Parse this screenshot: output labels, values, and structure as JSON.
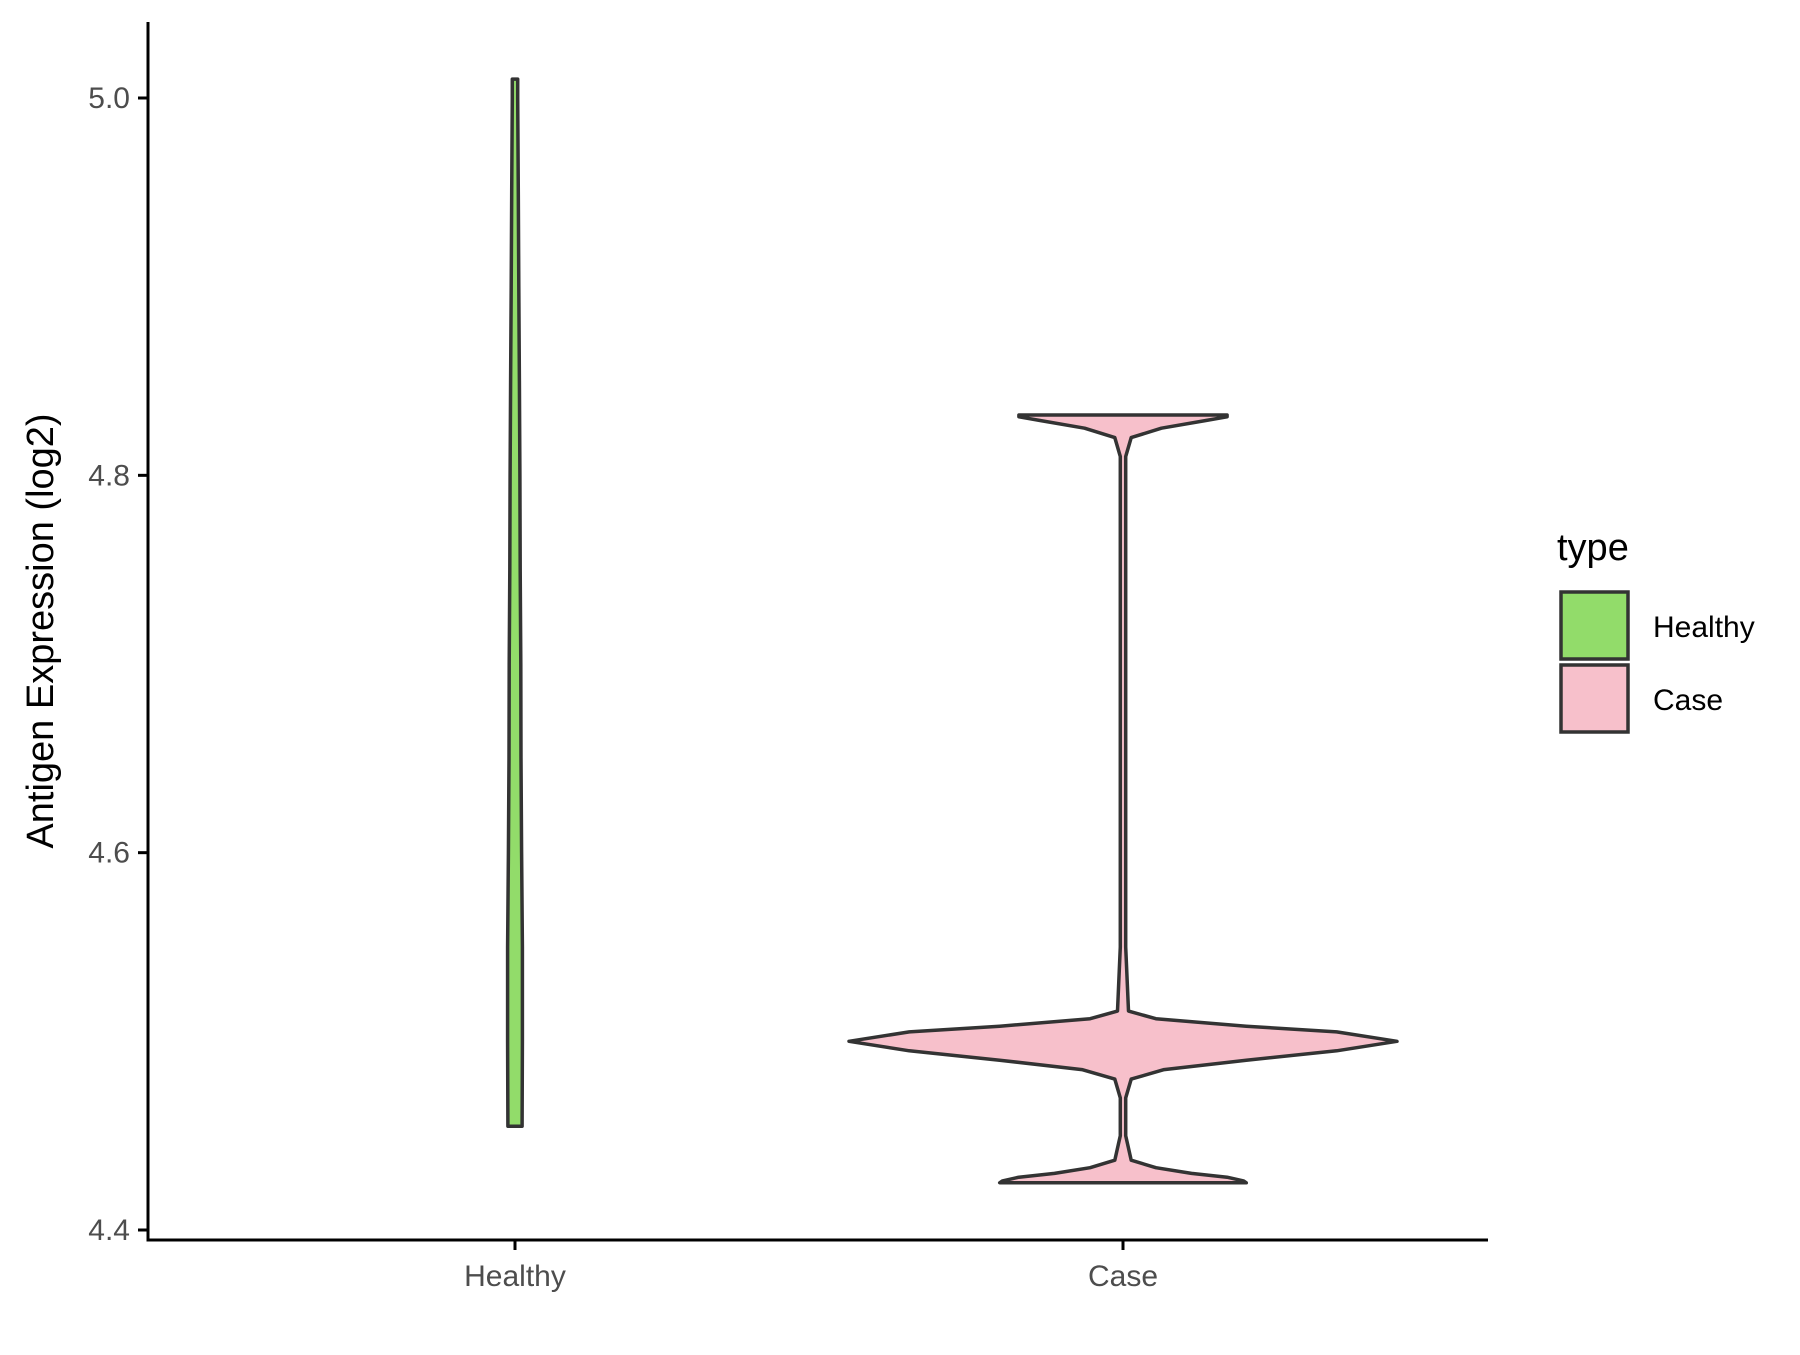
{
  "chart_data": {
    "type": "violin",
    "title": "",
    "xlabel": "",
    "ylabel": "Antigen Expression (log2)",
    "ylim": [
      4.4,
      5.04
    ],
    "yticks": [
      4.4,
      4.6,
      4.8,
      5.0
    ],
    "ytick_labels": [
      "4.4",
      "4.6",
      "4.8",
      "5.0"
    ],
    "categories": [
      "Healthy",
      "Case"
    ],
    "grid": false,
    "legend": {
      "title": "type",
      "position": "right",
      "entries": [
        {
          "label": "Healthy",
          "color": "#92dc6a"
        },
        {
          "label": "Case",
          "color": "#f7c0cb"
        }
      ]
    },
    "series": [
      {
        "category": "Healthy",
        "color": "#92dc6a",
        "min": 4.455,
        "max": 5.01,
        "density": [
          [
            4.455,
            0.026
          ],
          [
            4.5,
            0.027
          ],
          [
            4.55,
            0.027
          ],
          [
            4.6,
            0.024
          ],
          [
            4.65,
            0.022
          ],
          [
            4.7,
            0.021
          ],
          [
            4.75,
            0.019
          ],
          [
            4.8,
            0.018
          ],
          [
            4.85,
            0.016
          ],
          [
            4.9,
            0.014
          ],
          [
            4.95,
            0.012
          ],
          [
            5.0,
            0.01
          ],
          [
            5.01,
            0.01
          ]
        ]
      },
      {
        "category": "Case",
        "color": "#f7c0cb",
        "min": 4.425,
        "max": 4.832,
        "density": [
          [
            4.425,
            0.45
          ],
          [
            4.426,
            0.44
          ],
          [
            4.428,
            0.38
          ],
          [
            4.43,
            0.25
          ],
          [
            4.433,
            0.12
          ],
          [
            4.437,
            0.03
          ],
          [
            4.45,
            0.01
          ],
          [
            4.47,
            0.01
          ],
          [
            4.48,
            0.03
          ],
          [
            4.485,
            0.15
          ],
          [
            4.49,
            0.45
          ],
          [
            4.495,
            0.78
          ],
          [
            4.5,
            1.0
          ],
          [
            4.505,
            0.78
          ],
          [
            4.508,
            0.45
          ],
          [
            4.512,
            0.12
          ],
          [
            4.516,
            0.02
          ],
          [
            4.55,
            0.01
          ],
          [
            4.7,
            0.01
          ],
          [
            4.81,
            0.01
          ],
          [
            4.82,
            0.03
          ],
          [
            4.825,
            0.14
          ],
          [
            4.829,
            0.3
          ],
          [
            4.831,
            0.38
          ],
          [
            4.832,
            0.38
          ]
        ]
      }
    ]
  }
}
